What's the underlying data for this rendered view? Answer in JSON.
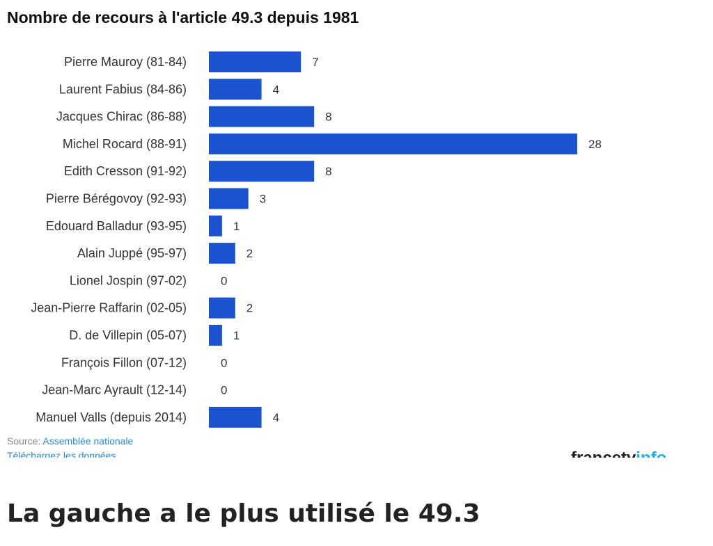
{
  "chart_data": {
    "type": "bar",
    "orientation": "horizontal",
    "title": "Nombre de recours à l'article 49.3 depuis 1981",
    "categories": [
      "Pierre Mauroy (81-84)",
      "Laurent Fabius (84-86)",
      "Jacques Chirac (86-88)",
      "Michel Rocard (88-91)",
      "Edith Cresson (91-92)",
      "Pierre Bérégovoy (92-93)",
      "Edouard Balladur (93-95)",
      "Alain Juppé (95-97)",
      "Lionel Jospin (97-02)",
      "Jean-Pierre Raffarin (02-05)",
      "D. de Villepin (05-07)",
      "François Fillon (07-12)",
      "Jean-Marc Ayrault (12-14)",
      "Manuel Valls (depuis 2014)"
    ],
    "values": [
      7,
      4,
      8,
      28,
      8,
      3,
      1,
      2,
      0,
      2,
      1,
      0,
      0,
      4
    ],
    "xlim": [
      0,
      28
    ],
    "data_labels": true,
    "grid": false,
    "legend": false,
    "bar_color": "#1a52cf"
  },
  "source": {
    "prefix": "Source: ",
    "name": "Assemblée nationale",
    "download": "Téléchargez les données"
  },
  "logo": {
    "part1": "francetv",
    "part2": "info"
  },
  "section_heading": "La gauche a le plus utilisé le 49.3",
  "colors": {
    "link": "#2a8ad4",
    "logo_accent": "#1fb2e6"
  }
}
